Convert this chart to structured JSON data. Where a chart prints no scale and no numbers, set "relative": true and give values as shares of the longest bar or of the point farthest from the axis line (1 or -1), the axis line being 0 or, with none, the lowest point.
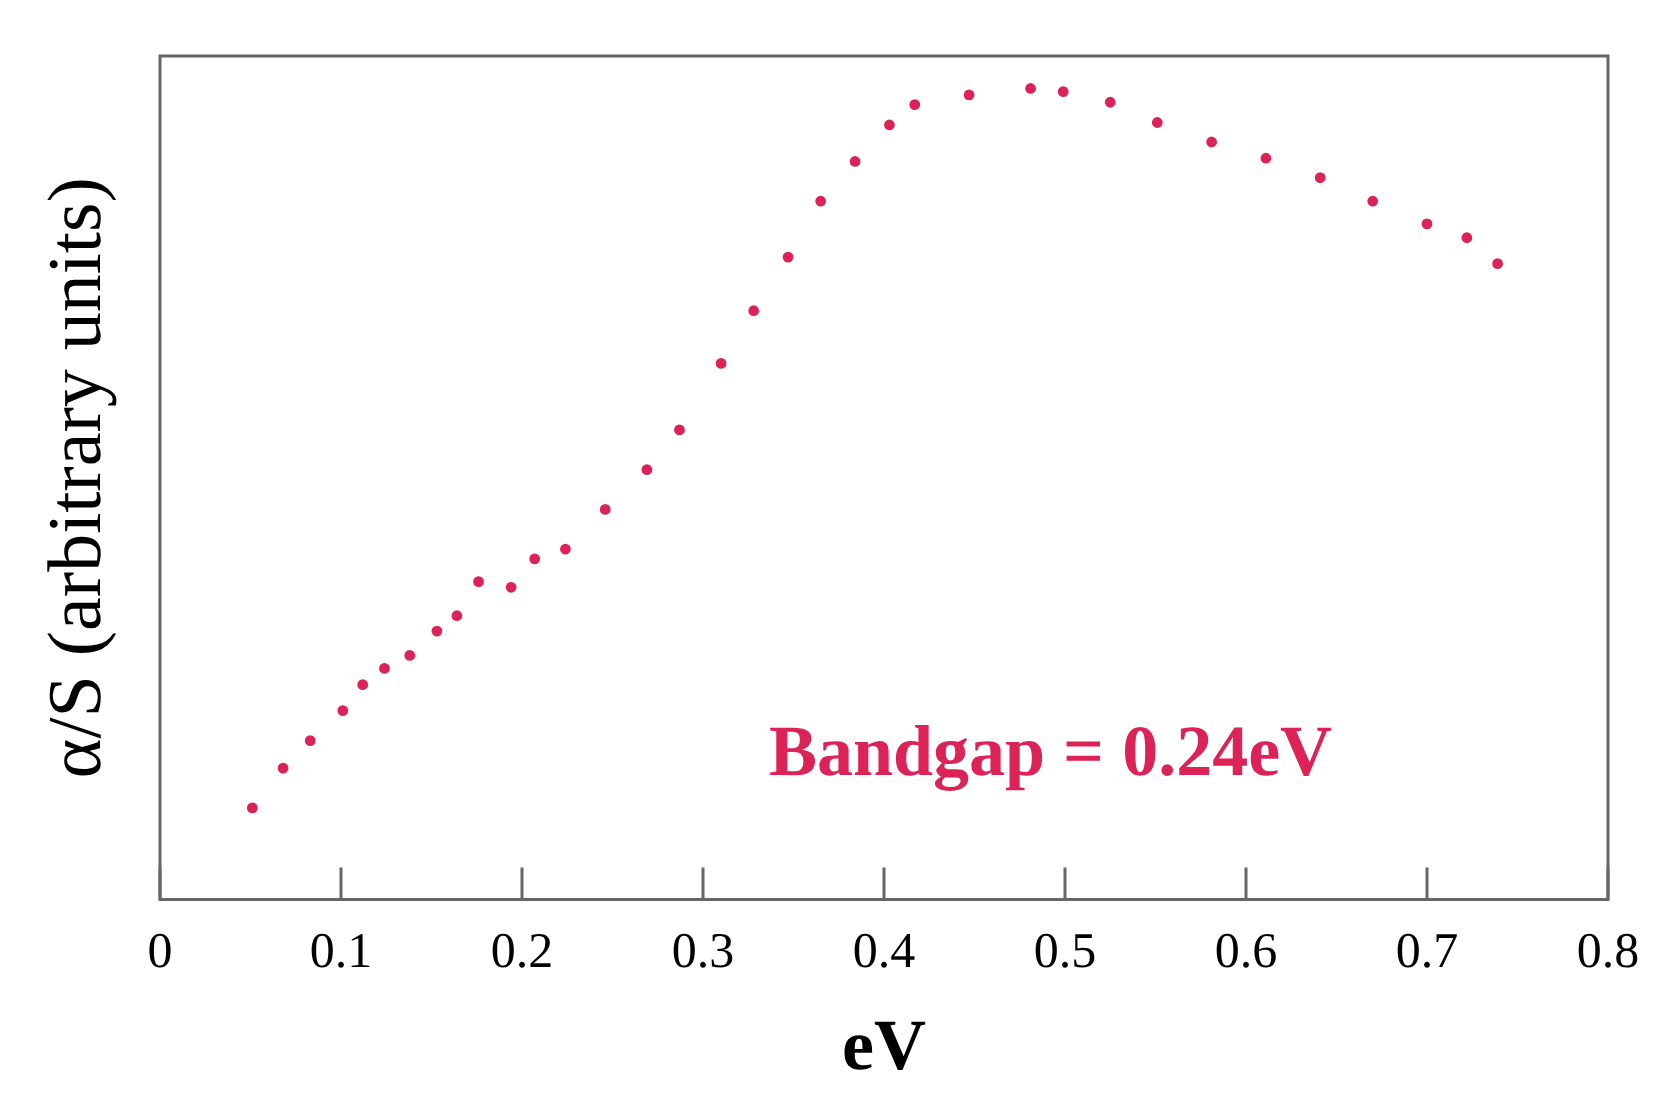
{
  "chart_data": {
    "type": "scatter",
    "relative": true,
    "xlabel": "eV",
    "ylabel": "α/S (arbitrary units)",
    "annotations": [
      "Bandgap = 0.24eV"
    ],
    "xlim": [
      0,
      0.8
    ],
    "xticks": [
      0,
      0.1,
      0.2,
      0.3,
      0.4,
      0.5,
      0.6,
      0.7,
      0.8
    ],
    "grid": false,
    "legend": false,
    "marker": "circle",
    "series": [
      {
        "color": "#dc2358",
        "x": [
          0.051,
          0.068,
          0.083,
          0.101,
          0.112,
          0.124,
          0.138,
          0.153,
          0.164,
          0.176,
          0.194,
          0.207,
          0.224,
          0.246,
          0.269,
          0.287,
          0.31,
          0.328,
          0.347,
          0.365,
          0.384,
          0.403,
          0.417,
          0.447,
          0.481,
          0.499,
          0.525,
          0.551,
          0.581,
          0.611,
          0.641,
          0.67,
          0.7,
          0.722,
          0.739
        ],
        "values": [
          0.113,
          0.162,
          0.196,
          0.233,
          0.265,
          0.285,
          0.301,
          0.331,
          0.35,
          0.392,
          0.385,
          0.42,
          0.432,
          0.481,
          0.53,
          0.579,
          0.661,
          0.726,
          0.792,
          0.861,
          0.91,
          0.955,
          0.98,
          0.992,
          1.0,
          0.996,
          0.983,
          0.958,
          0.934,
          0.914,
          0.89,
          0.861,
          0.833,
          0.816,
          0.784
        ]
      }
    ]
  }
}
